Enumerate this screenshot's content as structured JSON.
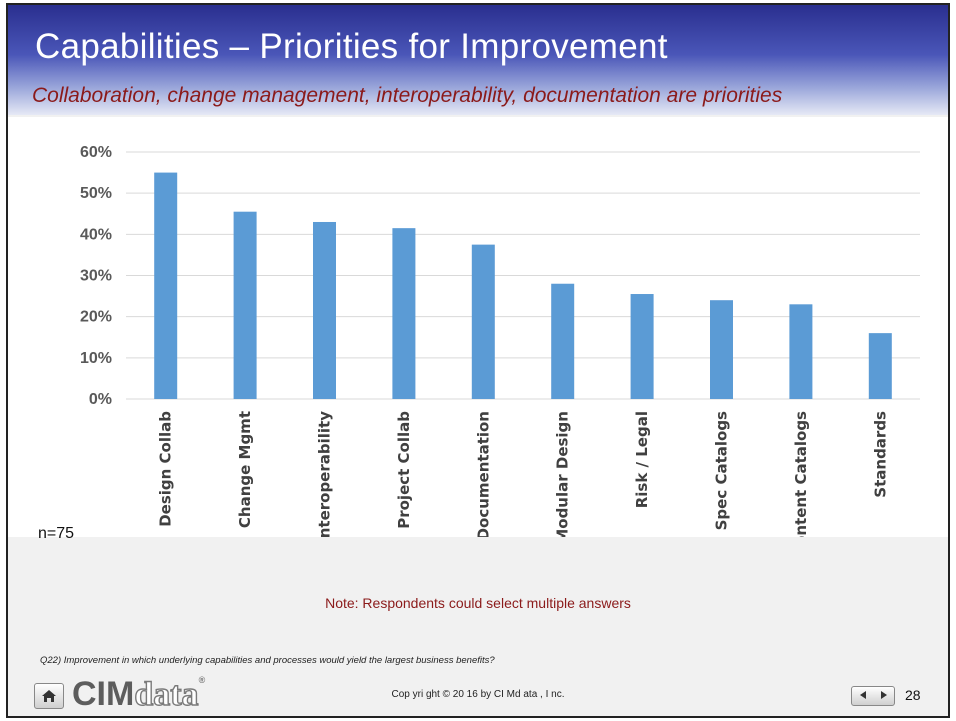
{
  "slide": {
    "title": "Capabilities – Priorities for Improvement",
    "subtitle": "Collaboration,   change management, interoperability,   documentation  are priorities",
    "sample_size": "n=75",
    "note": "Note: Respondents  could select multiple answers",
    "question": "Q22) Improvement    in which underlying  capabilities and processes would yield the largest business benefits?"
  },
  "footer": {
    "logo_text_dark": "CIM",
    "logo_text_light": "data",
    "logo_mark": "®",
    "copyright": "Cop yri ght © 20 16 by CI Md ata , I nc.",
    "page_number": "28",
    "home_icon": "home-icon",
    "prev_icon": "triangle-left-icon",
    "next_icon": "triangle-right-icon"
  },
  "colors": {
    "bar": "#5b9bd5",
    "title_bar": "#2a2f8f",
    "subtitle": "#8b1a1a"
  },
  "chart_data": {
    "type": "bar",
    "title": "",
    "xlabel": "",
    "ylabel": "",
    "categories": [
      "Design Collab",
      "Change Mgmt",
      "Interoperability",
      "Project Collab",
      "Documentation",
      "Modular Design",
      "Risk / Legal",
      "Spec Catalogs",
      "Content Catalogs",
      "Standards"
    ],
    "values": [
      55,
      45.5,
      43,
      41.5,
      37.5,
      28,
      25.5,
      24,
      23,
      16
    ],
    "ylim": [
      0,
      60
    ],
    "yticks": [
      0,
      10,
      20,
      30,
      40,
      50,
      60
    ],
    "ytick_format": "percent",
    "grid": true,
    "legend": "none"
  }
}
